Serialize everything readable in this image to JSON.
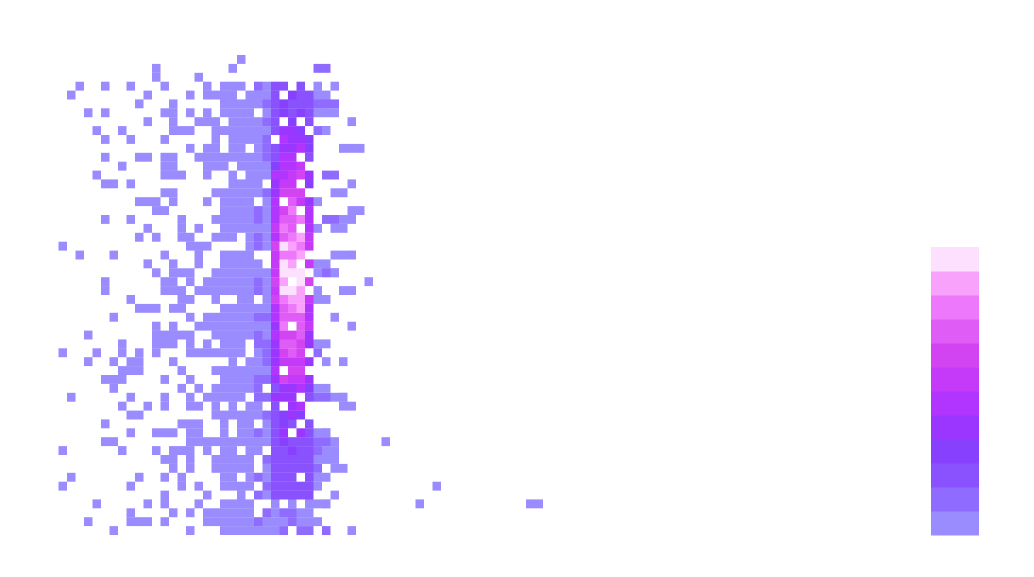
{
  "chart_data": {
    "type": "heatmap",
    "title": "",
    "xlabel": "",
    "ylabel": "",
    "axes_visible": false,
    "grid": false,
    "colorbar": {
      "placement": "right",
      "levels": 12,
      "colors": [
        "#9a8cff",
        "#8f6cff",
        "#8a52ff",
        "#8840ff",
        "#9a36ff",
        "#b234ff",
        "#c43af8",
        "#d244f2",
        "#e05cf6",
        "#ee78fb",
        "#f9a2fb",
        "#fde0fd"
      ],
      "tick_labels": []
    },
    "x_range": [
      0,
      50
    ],
    "y_range": [
      0,
      27
    ],
    "x_count_profile": [
      [
        0,
        0.4
      ],
      [
        1,
        0.9
      ],
      [
        2,
        1.4
      ],
      [
        3,
        1.8
      ],
      [
        4,
        2.8
      ],
      [
        5,
        3.6
      ],
      [
        6,
        4.4
      ],
      [
        7,
        5.2
      ],
      [
        8,
        6.0
      ],
      [
        9,
        6.8
      ],
      [
        10,
        8.2
      ],
      [
        11,
        9.2
      ],
      [
        12,
        10.2
      ],
      [
        13,
        12.5
      ],
      [
        14,
        11.8
      ],
      [
        15,
        6.0
      ],
      [
        16,
        2.8
      ],
      [
        17,
        1.5
      ],
      [
        18,
        0.9
      ],
      [
        19,
        0.5
      ],
      [
        20,
        0.3
      ],
      [
        21,
        0.2
      ],
      [
        22,
        0.1
      ],
      [
        23,
        0.1
      ],
      [
        24,
        0.1
      ],
      [
        25,
        0.08
      ],
      [
        26,
        0.05
      ],
      [
        27,
        0.05
      ],
      [
        28,
        0.04
      ],
      [
        30,
        0.03
      ],
      [
        33,
        0.03
      ],
      [
        36,
        0.02
      ],
      [
        40,
        0.02
      ],
      [
        44,
        0.02
      ]
    ],
    "peak_band": {
      "x": 14,
      "y_from": 9,
      "y_to": 20,
      "max_level": 12
    },
    "dense_block": {
      "x_from": 10,
      "x_to": 15,
      "y_from": 0,
      "y_to": 24
    },
    "tail_spread": {
      "x_from": 20,
      "x_to": 45,
      "y_from": 0,
      "y_to": 3
    }
  }
}
